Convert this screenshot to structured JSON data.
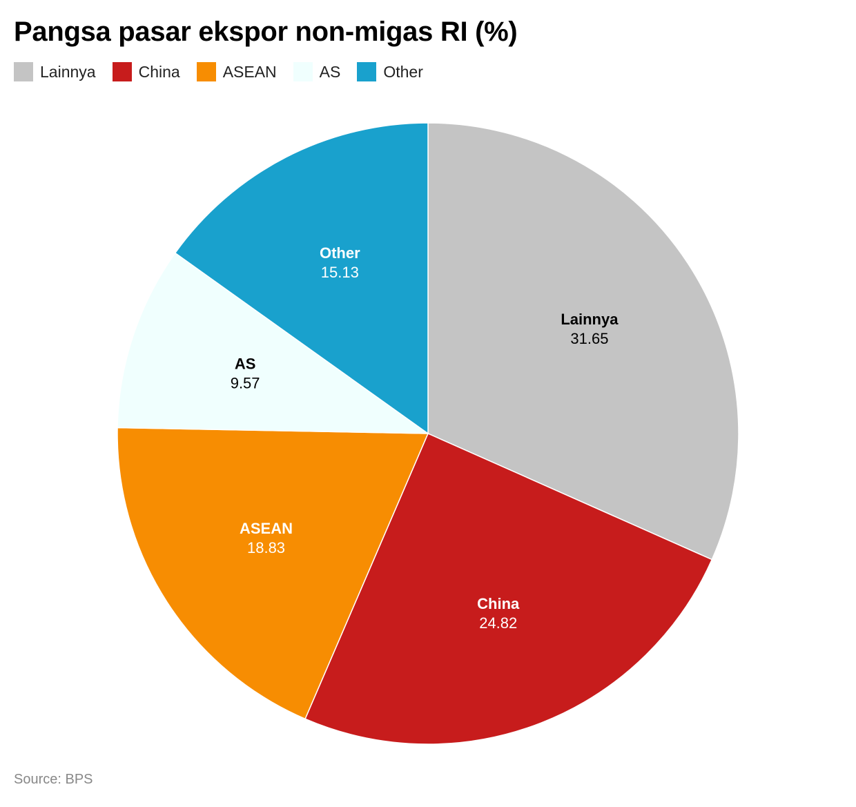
{
  "title": "Pangsa pasar ekspor non-migas RI (%)",
  "source": "Source: BPS",
  "chart_data": {
    "type": "pie",
    "title": "Pangsa pasar ekspor non-migas RI (%)",
    "legend_position": "top-left",
    "slices": [
      {
        "label": "Lainnya",
        "value": 31.65,
        "color": "#c4c4c4",
        "label_color": "#000000"
      },
      {
        "label": "China",
        "value": 24.82,
        "color": "#c71c1c",
        "label_color": "#ffffff"
      },
      {
        "label": "ASEAN",
        "value": 18.83,
        "color": "#f78d02",
        "label_color": "#ffffff"
      },
      {
        "label": "AS",
        "value": 9.57,
        "color": "#f0fffe",
        "label_color": "#000000"
      },
      {
        "label": "Other",
        "value": 15.13,
        "color": "#19a1cd",
        "label_color": "#ffffff"
      }
    ]
  }
}
